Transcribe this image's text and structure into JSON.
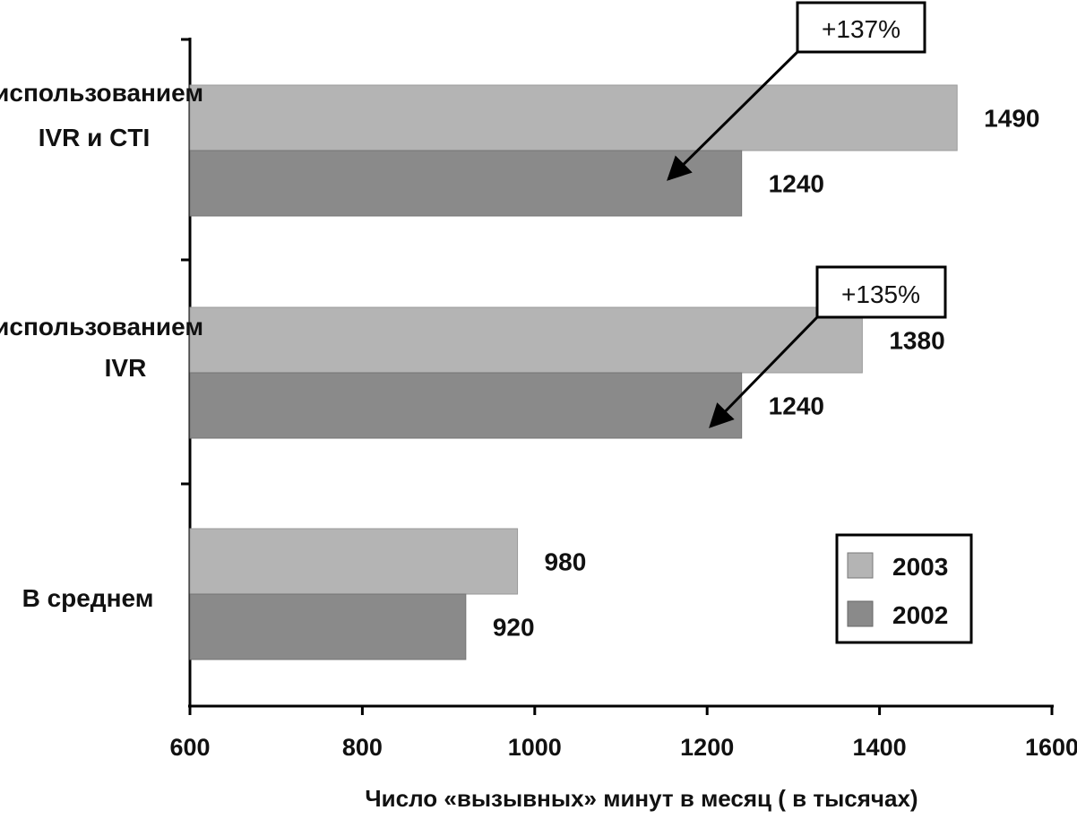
{
  "chart_data": {
    "type": "bar",
    "orientation": "horizontal",
    "categories": [
      "С использованием IVR и CTI",
      "С использованием IVR",
      "В среднем"
    ],
    "category_lines": [
      [
        "Сиспользованием",
        "IVR и CTI"
      ],
      [
        "Сиспользованием",
        "IVR"
      ],
      [
        "В среднем"
      ]
    ],
    "series": [
      {
        "name": "2003",
        "values": [
          1490,
          1380,
          980
        ],
        "color": "#b4b4b4"
      },
      {
        "name": "2002",
        "values": [
          1240,
          1240,
          920
        ],
        "color": "#8a8a8a"
      }
    ],
    "value_labels": {
      "2003": [
        "1490",
        "1380",
        "980"
      ],
      "2002": [
        "1240",
        "1240",
        "920"
      ]
    },
    "xlim": [
      600,
      1600
    ],
    "xticks": [
      600,
      800,
      1000,
      1200,
      1400,
      1600
    ],
    "xtick_labels": [
      "600",
      "800",
      "1000",
      "1200",
      "1400",
      "1600"
    ],
    "xlabel": "Число «вызывных» минут в месяц ( в тысячах)",
    "ylabel": "",
    "title": "",
    "legend": {
      "position": "bottom-right",
      "entries": [
        "2003",
        "2002"
      ]
    },
    "annotations": [
      {
        "text": "+137%",
        "category_index": 0
      },
      {
        "text": "+135%",
        "category_index": 1
      }
    ],
    "grid": false
  }
}
